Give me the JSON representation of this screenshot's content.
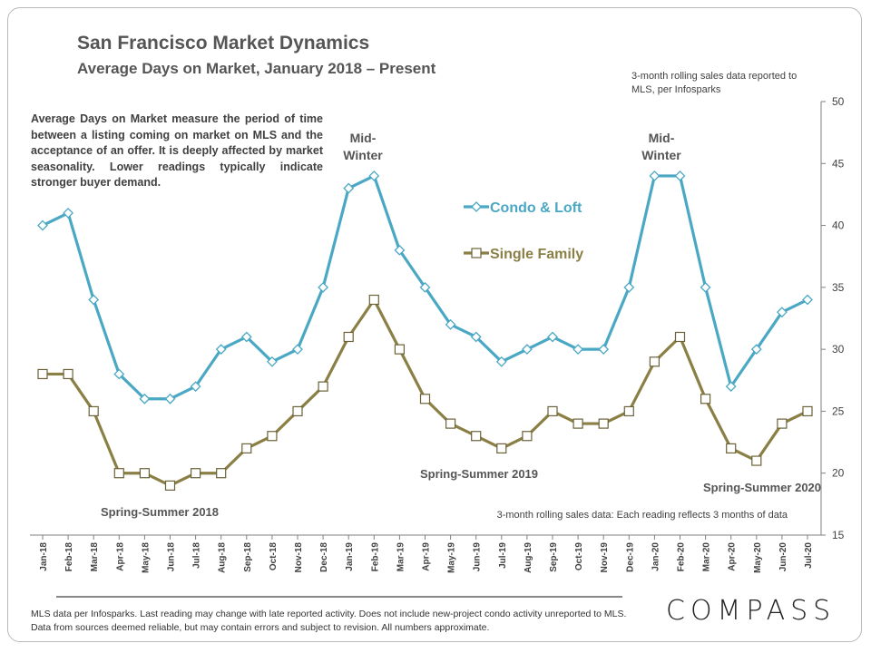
{
  "header": {
    "title": "San Francisco Market Dynamics",
    "subtitle": "Average Days on Market, January 2018 – Present",
    "source_note": "3-month rolling sales data reported to MLS, per Infosparks"
  },
  "description": "Average Days on Market measure the period of time between a listing coming on market on MLS and the acceptance of an offer. It is deeply affected by market seasonality. Lower readings typically indicate stronger buyer demand.",
  "footer": "MLS data per Infosparks. Last reading may change with late reported activity. Does not include new-project condo activity unreported to MLS. Data from sources deemed reliable, but may contain errors and subject to revision. All numbers approximate.",
  "logo": "COMPASS",
  "chart_data": {
    "type": "line",
    "title": "Average Days on Market, January 2018 – Present",
    "categories": [
      "Jan-18",
      "Feb-18",
      "Mar-18",
      "Apr-18",
      "May-18",
      "Jun-18",
      "Jul-18",
      "Aug-18",
      "Sep-18",
      "Oct-18",
      "Nov-18",
      "Dec-18",
      "Jan-19",
      "Feb-19",
      "Mar-19",
      "Apr-19",
      "May-19",
      "Jun-19",
      "Jul-19",
      "Aug-19",
      "Sep-19",
      "Oct-19",
      "Nov-19",
      "Dec-19",
      "Jan-20",
      "Feb-20",
      "Mar-20",
      "Apr-20",
      "May-20",
      "Jun-20",
      "Jul-20"
    ],
    "series": [
      {
        "name": "Condo & Loft",
        "color": "#4aa8c4",
        "marker": "diamond",
        "values": [
          40,
          41,
          34,
          28,
          26,
          26,
          27,
          30,
          31,
          29,
          30,
          35,
          43,
          44,
          38,
          35,
          32,
          31,
          29,
          30,
          31,
          30,
          30,
          35,
          44,
          44,
          35,
          27,
          30,
          33,
          34
        ]
      },
      {
        "name": "Single Family",
        "color": "#8a7f45",
        "marker": "square",
        "values": [
          28,
          28,
          25,
          20,
          20,
          19,
          20,
          20,
          22,
          23,
          25,
          27,
          31,
          34,
          30,
          26,
          24,
          23,
          22,
          23,
          25,
          24,
          24,
          25,
          29,
          31,
          26,
          22,
          21,
          24,
          25
        ]
      }
    ],
    "ylim": [
      15,
      50
    ],
    "yticks": [
      15,
      20,
      25,
      30,
      35,
      40,
      45,
      50
    ],
    "y_axis_side": "right",
    "annotations": [
      {
        "text": "Mid-Winter",
        "anchor": "Feb-19"
      },
      {
        "text": "Mid-Winter",
        "anchor": "Feb-20"
      },
      {
        "text": "Spring-Summer 2018",
        "anchor": "Jun-18"
      },
      {
        "text": "Spring-Summer 2019",
        "anchor": "Jul-19"
      },
      {
        "text": "Spring-Summer 2020",
        "anchor": "May-20"
      },
      {
        "text": "3-month rolling sales data: Each reading reflects 3 months of data",
        "anchor": "bottom-right"
      }
    ]
  }
}
